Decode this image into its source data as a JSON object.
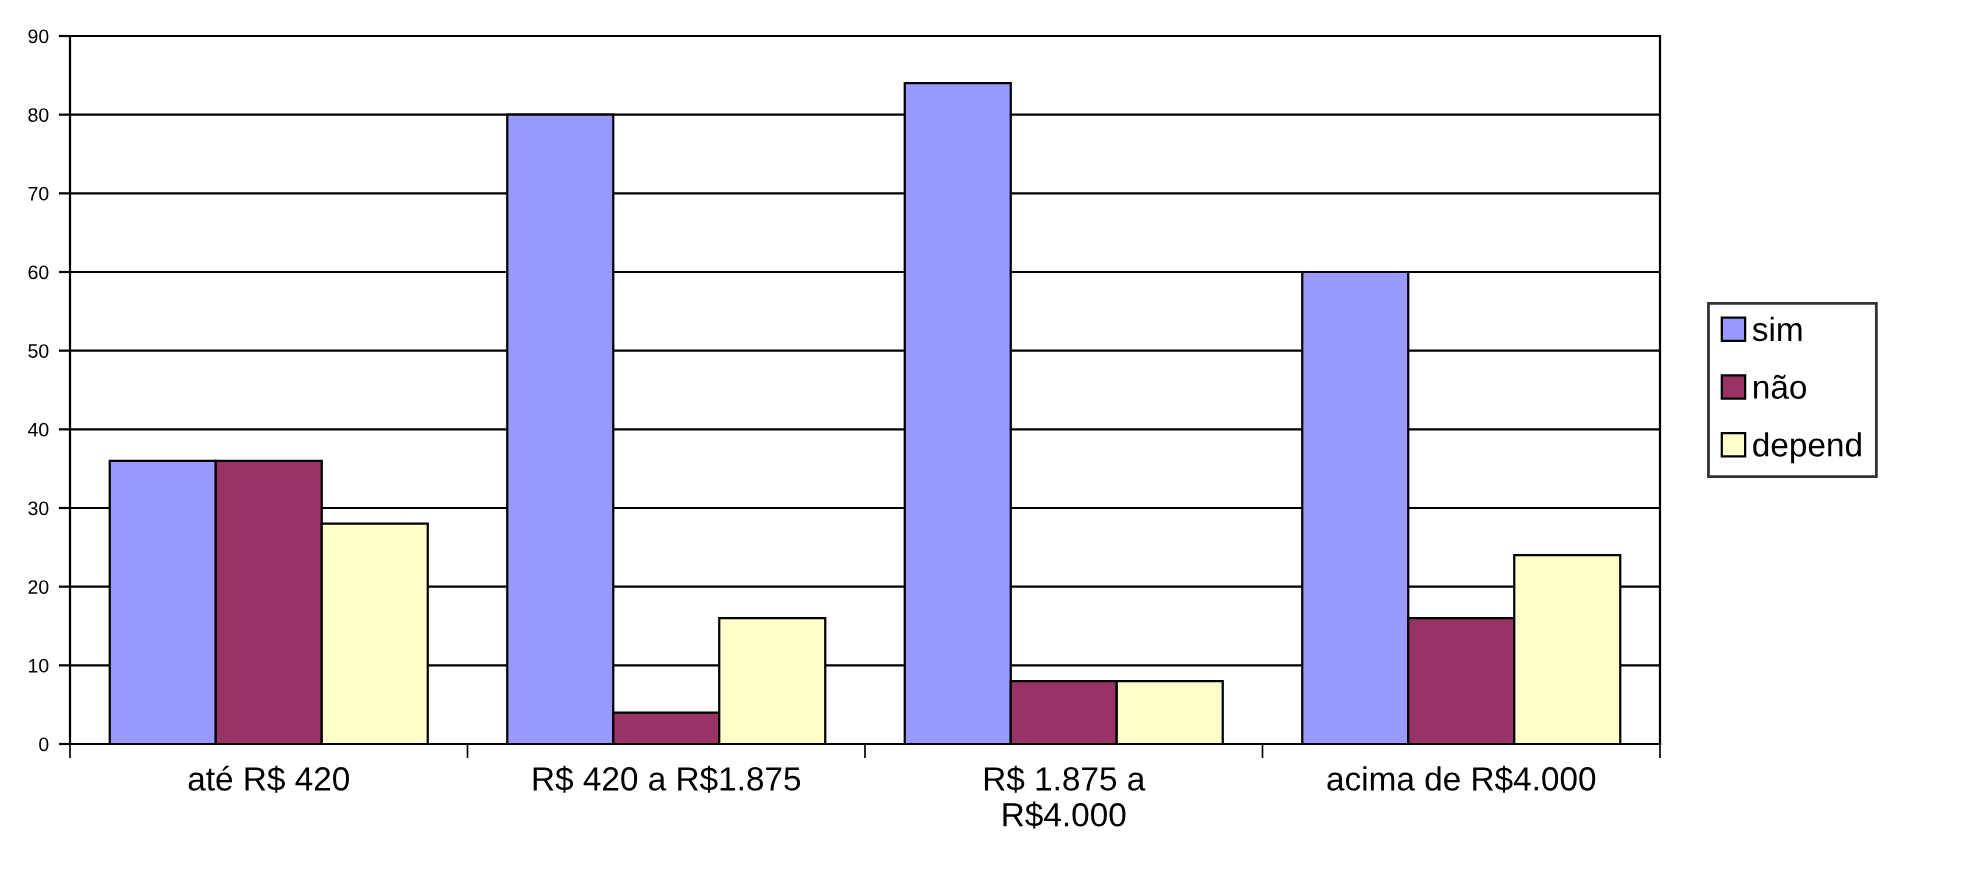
{
  "chart_data": {
    "type": "bar",
    "categories": [
      "até R$ 420",
      "R$ 420 a R$1.875",
      "R$ 1.875 a\nR$4.000",
      "acima de R$4.000"
    ],
    "series": [
      {
        "name": "sim",
        "color": "#9999ff",
        "values": [
          36,
          80,
          84,
          60
        ]
      },
      {
        "name": "não",
        "color": "#993366",
        "values": [
          36,
          4,
          8,
          16
        ]
      },
      {
        "name": "depend",
        "color": "#ffffcc",
        "values": [
          28,
          16,
          8,
          24
        ]
      }
    ],
    "ylim": [
      0,
      90
    ],
    "yticks": [
      0,
      10,
      20,
      30,
      40,
      50,
      60,
      70,
      80,
      90
    ],
    "grid": "y",
    "legend": "right"
  }
}
